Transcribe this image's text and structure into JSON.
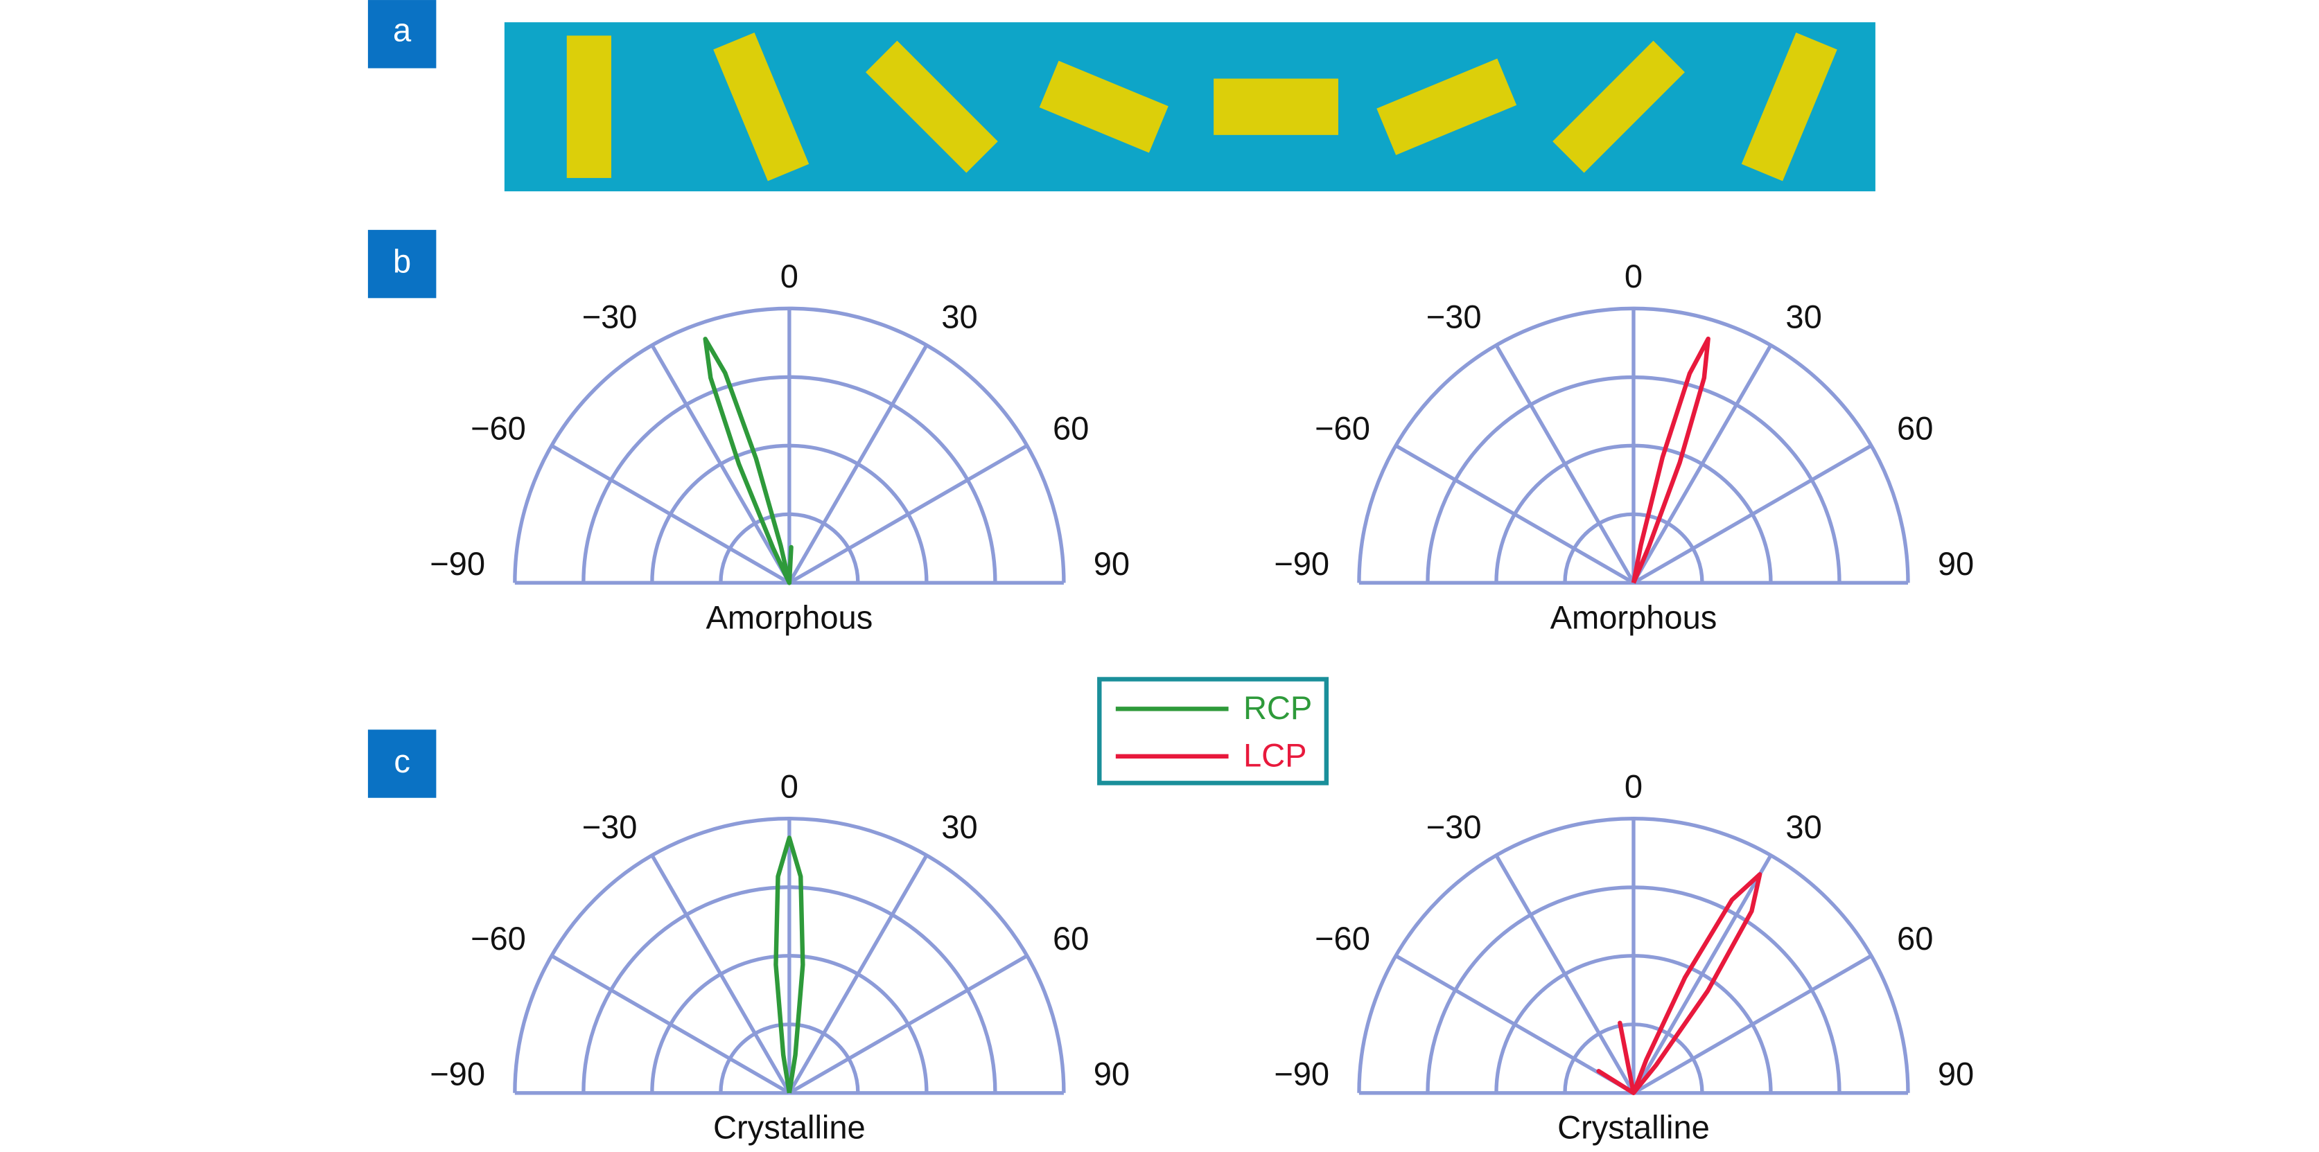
{
  "panel_labels": [
    "a",
    "b",
    "c"
  ],
  "chart_data": [
    {
      "type": "polar",
      "title": "Amorphous",
      "thetaticks": [
        {
          "value": -90,
          "label": "−90"
        },
        {
          "value": -60,
          "label": "−60"
        },
        {
          "value": -30,
          "label": "−30"
        },
        0,
        30,
        60,
        90
      ],
      "rlim": [
        0,
        1
      ],
      "rticks": [
        0.25,
        0.5,
        0.75,
        1
      ],
      "grid": true,
      "grid_color": "#8c9bd8",
      "series": [
        {
          "name": "RCP",
          "color": "#2e9a3a",
          "theta": [
            -27,
            -25,
            -23,
            -21,
            -19,
            -17,
            -15,
            -13,
            -11,
            1,
            3,
            5
          ],
          "r": [
            0,
            0.14,
            0.47,
            0.8,
            0.94,
            0.8,
            0.47,
            0.14,
            0,
            0,
            0.13,
            0
          ]
        }
      ]
    },
    {
      "type": "polar",
      "title": "Amorphous",
      "thetaticks": [
        {
          "value": -90,
          "label": "−90"
        },
        {
          "value": -60,
          "label": "−60"
        },
        {
          "value": -30,
          "label": "−30"
        },
        0,
        30,
        60,
        90
      ],
      "rlim": [
        0,
        1
      ],
      "rticks": [
        0.25,
        0.5,
        0.75,
        1
      ],
      "grid": true,
      "grid_color": "#8c9bd8",
      "series": [
        {
          "name": "LCP",
          "color": "#e8193c",
          "theta": [
            9,
            11,
            13,
            15,
            17,
            19,
            21,
            23,
            25
          ],
          "r": [
            0,
            0.14,
            0.47,
            0.79,
            0.93,
            0.79,
            0.47,
            0.14,
            0
          ]
        }
      ]
    },
    {
      "type": "polar",
      "title": "Crystalline",
      "thetaticks": [
        {
          "value": -90,
          "label": "−90"
        },
        {
          "value": -60,
          "label": "−60"
        },
        {
          "value": -30,
          "label": "−30"
        },
        0,
        30,
        60,
        90
      ],
      "rlim": [
        0,
        1
      ],
      "rticks": [
        0.25,
        0.5,
        0.75,
        1
      ],
      "grid": true,
      "grid_color": "#8c9bd8",
      "series": [
        {
          "name": "RCP",
          "color": "#2e9a3a",
          "theta": [
            -12,
            -9,
            -6,
            -3,
            0,
            3,
            6,
            9,
            12
          ],
          "r": [
            0,
            0.14,
            0.47,
            0.79,
            0.93,
            0.79,
            0.47,
            0.14,
            0
          ]
        }
      ]
    },
    {
      "type": "polar",
      "title": "Crystalline",
      "thetaticks": [
        {
          "value": -90,
          "label": "−90"
        },
        {
          "value": -60,
          "label": "−60"
        },
        {
          "value": -30,
          "label": "−30"
        },
        0,
        30,
        60,
        90
      ],
      "rlim": [
        0,
        1
      ],
      "rticks": [
        0.25,
        0.5,
        0.75,
        1
      ],
      "grid": true,
      "grid_color": "#8c9bd8",
      "series": [
        {
          "name": "LCP",
          "color": "#e8193c",
          "theta": [
            -64,
            -58,
            -52,
            -16,
            -11,
            -6,
            18,
            21,
            24,
            27,
            30,
            33,
            36,
            39,
            42
          ],
          "r": [
            0,
            0.15,
            0,
            0,
            0.26,
            0,
            0,
            0.13,
            0.46,
            0.79,
            0.92,
            0.79,
            0.46,
            0.13,
            0
          ]
        }
      ]
    }
  ]
}
